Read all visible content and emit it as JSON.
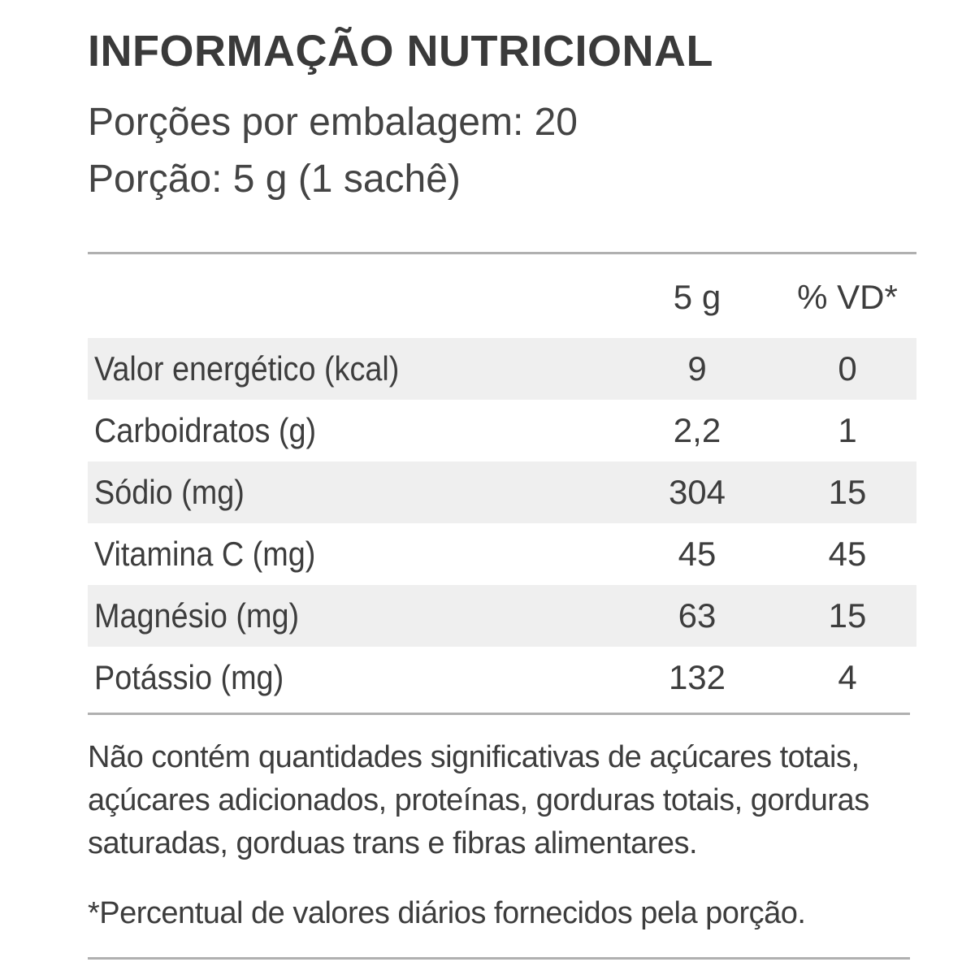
{
  "title": "INFORMAÇÃO NUTRICIONAL",
  "servings_per_package": "Porções por embalagem: 20",
  "serving_size": "Porção: 5 g (1 sachê)",
  "table": {
    "header": {
      "amount": "5 g",
      "daily_value": "% VD*"
    },
    "rows": [
      {
        "nutrient": "Valor energético (kcal)",
        "amount": "9",
        "daily_value": "0",
        "shaded": true
      },
      {
        "nutrient": "Carboidratos (g)",
        "amount": "2,2",
        "daily_value": "1",
        "shaded": false
      },
      {
        "nutrient": "Sódio (mg)",
        "amount": "304",
        "daily_value": "15",
        "shaded": true
      },
      {
        "nutrient": "Vitamina C (mg)",
        "amount": "45",
        "daily_value": "45",
        "shaded": false
      },
      {
        "nutrient": "Magnésio (mg)",
        "amount": "63",
        "daily_value": "15",
        "shaded": true
      },
      {
        "nutrient": "Potássio (mg)",
        "amount": "132",
        "daily_value": "4",
        "shaded": false
      }
    ]
  },
  "note": "Não contém quantidades significativas de açúcares totais, açúcares adicionados, proteínas, gorduras totais, gorduras saturadas, gorduas trans e fibras alimentares.",
  "vd_note": "*Percentual de valores diários fornecidos pela porção.",
  "colors": {
    "text": "#3d3d3d",
    "row_shade": "#efefef",
    "rule": "#b0b0b0"
  }
}
